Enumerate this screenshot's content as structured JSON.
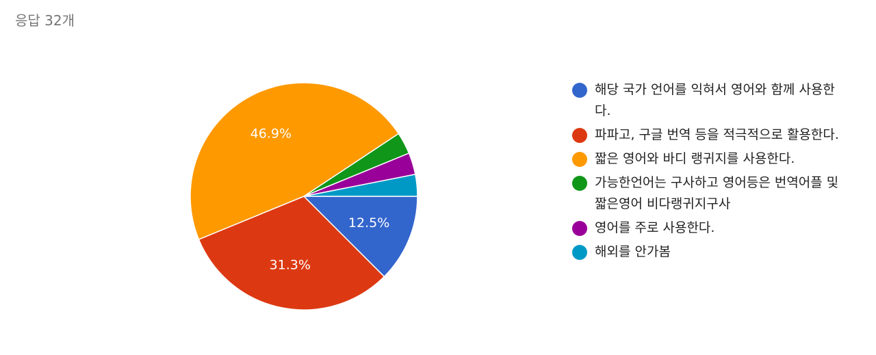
{
  "header": {
    "title": "응답 32개"
  },
  "chart_data": {
    "type": "pie",
    "categories": [
      "해당 국가 언어를 익혀서 영어와 함께 사용한다.",
      "파파고, 구글 번역 등을 적극적으로 활용한다.",
      "짧은 영어와 바디 랭귀지를 사용한다.",
      "가능한언어는 구사하고 영어등은 번역어플 및 짧은영어 비다랭귀지구사",
      "영어를 주로 사용한다.",
      "해외를 안가봄"
    ],
    "values": [
      12.5,
      31.3,
      46.9,
      3.1,
      3.1,
      3.1
    ],
    "value_labels": [
      "12.5%",
      "31.3%",
      "46.9%",
      null,
      null,
      null
    ],
    "colors": [
      "#3366cc",
      "#dc3912",
      "#ff9900",
      "#109618",
      "#990099",
      "#0099c6"
    ],
    "legend": "right"
  }
}
